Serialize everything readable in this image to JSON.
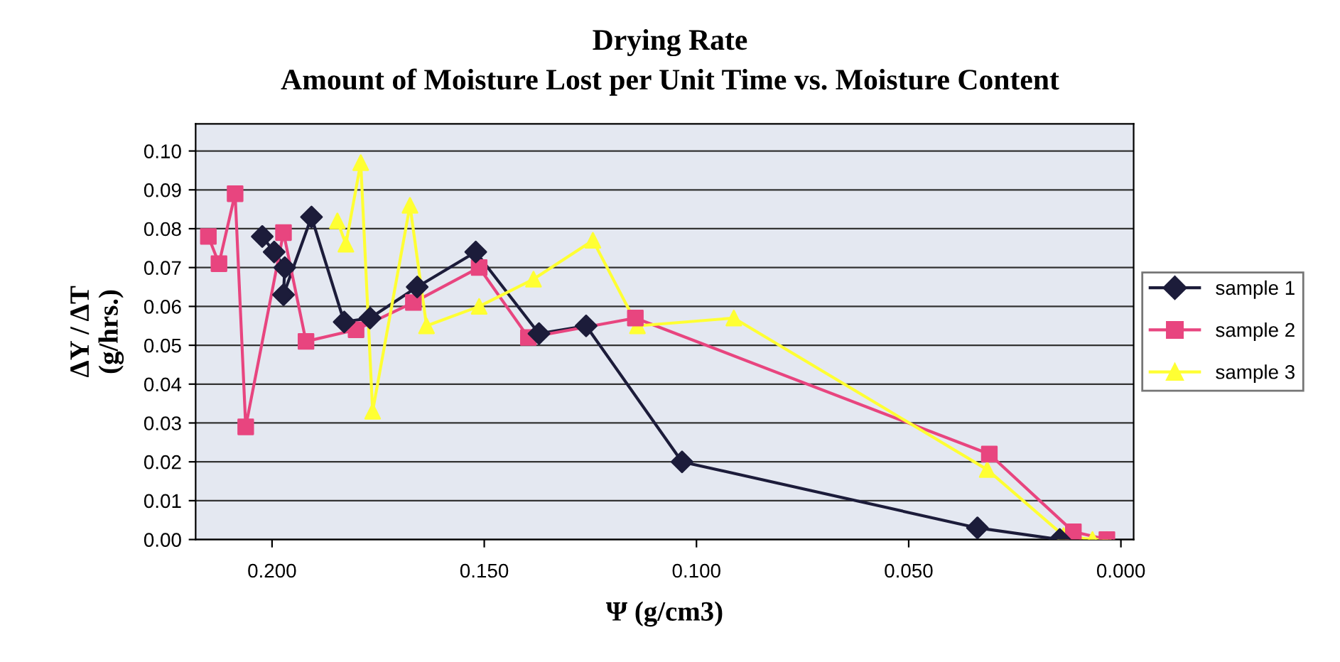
{
  "chart_data": {
    "type": "line",
    "title": "Drying Rate",
    "subtitle": "Amount of Moisture Lost per Unit Time vs. Moisture Content",
    "xlabel": "Ψ (g/cm3)",
    "ylabel": "ΔY / ΔT\n(g/hrs.)",
    "xlim": [
      0.218,
      -0.003
    ],
    "ylim": [
      0,
      0.107
    ],
    "xticks": [
      {
        "value": 0.2,
        "label": "0.200"
      },
      {
        "value": 0.15,
        "label": "0.150"
      },
      {
        "value": 0.1,
        "label": "0.100"
      },
      {
        "value": 0.05,
        "label": "0.050"
      },
      {
        "value": 0.0,
        "label": "0.000"
      }
    ],
    "yticks": [
      {
        "value": 0.0,
        "label": "0.00"
      },
      {
        "value": 0.01,
        "label": "0.01"
      },
      {
        "value": 0.02,
        "label": "0.02"
      },
      {
        "value": 0.03,
        "label": "0.03"
      },
      {
        "value": 0.04,
        "label": "0.04"
      },
      {
        "value": 0.05,
        "label": "0.05"
      },
      {
        "value": 0.06,
        "label": "0.06"
      },
      {
        "value": 0.07,
        "label": "0.07"
      },
      {
        "value": 0.08,
        "label": "0.08"
      },
      {
        "value": 0.09,
        "label": "0.09"
      },
      {
        "value": 0.1,
        "label": "0.10"
      }
    ],
    "grid": "y",
    "legend": "right",
    "line_style": "solid",
    "series": [
      {
        "name": "sample 1",
        "color": "#1c1c3a",
        "marker": "diamond",
        "x": [
          0.2023,
          0.1995,
          0.197,
          0.1973,
          0.1907,
          0.183,
          0.1769,
          0.1658,
          0.152,
          0.1371,
          0.126,
          0.1034,
          0.0338,
          0.0144
        ],
        "values": [
          0.078,
          0.074,
          0.07,
          0.063,
          0.083,
          0.056,
          0.057,
          0.065,
          0.074,
          0.053,
          0.055,
          0.02,
          0.003,
          0.0
        ]
      },
      {
        "name": "sample 2",
        "color": "#e8457f",
        "marker": "square",
        "x": [
          0.215,
          0.2125,
          0.2087,
          0.2062,
          0.1973,
          0.192,
          0.1802,
          0.1667,
          0.1512,
          0.1396,
          0.1144,
          0.031,
          0.0112,
          0.0033
        ],
        "values": [
          0.078,
          0.071,
          0.089,
          0.029,
          0.079,
          0.051,
          0.054,
          0.061,
          0.07,
          0.052,
          0.057,
          0.022,
          0.002,
          0.0
        ]
      },
      {
        "name": "sample 3",
        "color": "#ffff33",
        "marker": "triangle",
        "x": [
          0.1846,
          0.1826,
          0.1791,
          0.1763,
          0.1675,
          0.1636,
          0.1512,
          0.1384,
          0.1244,
          0.1139,
          0.0912,
          0.0315,
          0.0135,
          0.0067,
          0.0033
        ],
        "values": [
          0.082,
          0.076,
          0.097,
          0.033,
          0.086,
          0.055,
          0.06,
          0.067,
          0.077,
          0.055,
          0.057,
          0.018,
          0.001,
          0.0,
          0.0
        ]
      }
    ]
  }
}
